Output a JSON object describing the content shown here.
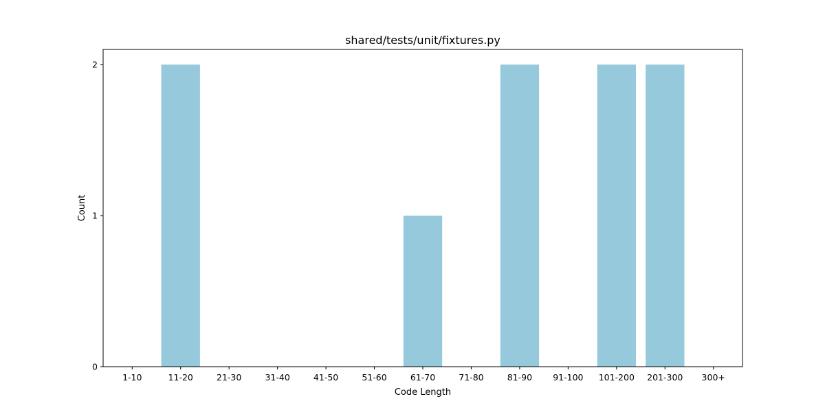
{
  "chart_data": {
    "type": "bar",
    "title": "shared/tests/unit/fixtures.py",
    "xlabel": "Code Length",
    "ylabel": "Count",
    "categories": [
      "1-10",
      "11-20",
      "21-30",
      "31-40",
      "41-50",
      "51-60",
      "61-70",
      "71-80",
      "81-90",
      "91-100",
      "101-200",
      "201-300",
      "300+"
    ],
    "values": [
      0,
      2,
      0,
      0,
      0,
      0,
      1,
      0,
      2,
      0,
      2,
      2,
      0
    ],
    "yticks": [
      0,
      1,
      2
    ],
    "ylim": [
      0,
      2.1
    ],
    "grid": false,
    "legend": false,
    "bar_color": "#96c9dc"
  }
}
